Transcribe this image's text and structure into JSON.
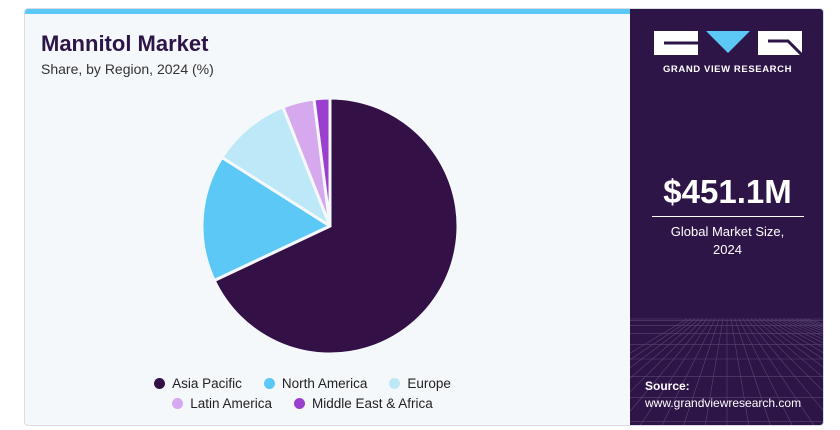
{
  "header": {
    "title": "Mannitol Market",
    "subtitle": "Share, by Region, 2024 (%)"
  },
  "sidebar": {
    "brand": "GRAND VIEW RESEARCH",
    "market_value": "$451.1M",
    "market_label_line1": "Global Market Size,",
    "market_label_line2": "2024",
    "source_label": "Source:",
    "source_url": "www.grandviewresearch.com"
  },
  "colors": {
    "Asia Pacific": "#331046",
    "North America": "#5bc8f5",
    "Europe": "#bde8f8",
    "Latin America": "#d6a8ee",
    "Middle East & Africa": "#9b3fcf",
    "panel": "#2e1547"
  },
  "chart_data": {
    "type": "pie",
    "title": "Mannitol Market",
    "subtitle": "Share, by Region, 2024 (%)",
    "legend_position": "bottom",
    "slices": [
      {
        "label": "Asia Pacific",
        "value": 68
      },
      {
        "label": "North America",
        "value": 16
      },
      {
        "label": "Europe",
        "value": 10
      },
      {
        "label": "Latin America",
        "value": 4
      },
      {
        "label": "Middle East & Africa",
        "value": 2
      }
    ]
  }
}
